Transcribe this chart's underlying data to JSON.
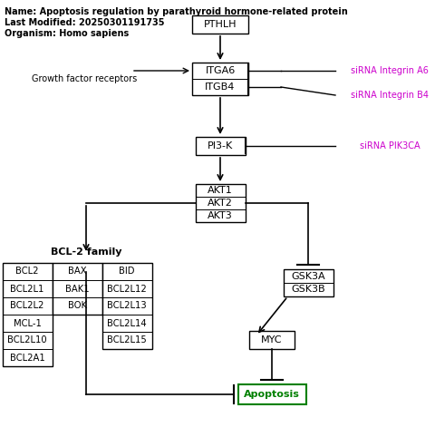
{
  "title_lines": [
    "Name: Apoptosis regulation by parathyroid hormone-related protein",
    "Last Modified: 20250301191735",
    "Organism: Homo sapiens"
  ],
  "background_color": "#ffffff",
  "bcl2_col1": [
    "BCL2",
    "BCL2L1",
    "BCL2L2",
    "MCL-1",
    "BCL2L10",
    "BCL2A1"
  ],
  "bcl2_col2": [
    "BAX",
    "BAK1",
    "BOK"
  ],
  "bcl2_col3": [
    "BID",
    "BCL2L12",
    "BCL2L13",
    "BCL2L14",
    "BCL2L15"
  ]
}
